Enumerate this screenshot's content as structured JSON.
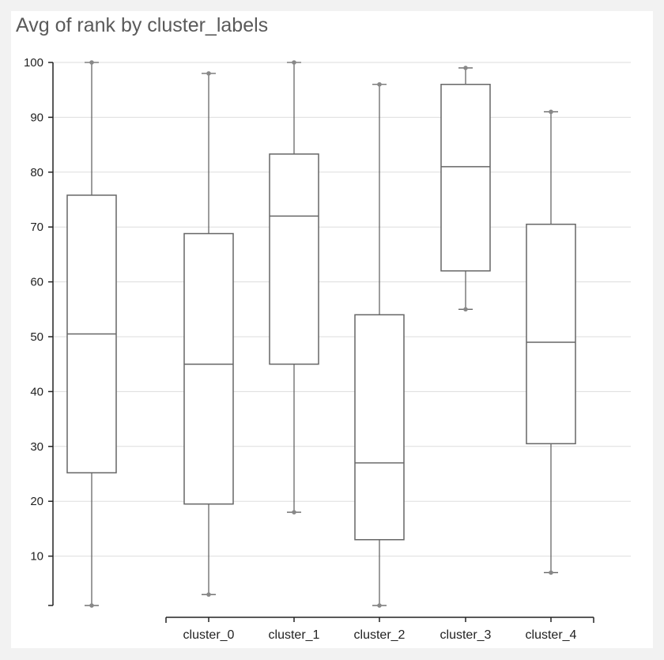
{
  "chart_data": {
    "type": "boxplot",
    "title": "Avg of rank by cluster_labels",
    "xlabel": "",
    "ylabel": "",
    "y_ticks": [
      "100",
      "90",
      "80",
      "70",
      "60",
      "50",
      "40",
      "30",
      "20",
      "10"
    ],
    "ylim": [
      0,
      100
    ],
    "grid": true,
    "categories": [
      "",
      "cluster_0",
      "cluster_1",
      "cluster_2",
      "cluster_3",
      "cluster_4"
    ],
    "boxes": [
      {
        "category": "",
        "min": 1,
        "q1": 25.2,
        "median": 50.5,
        "q3": 75.8,
        "max": 100
      },
      {
        "category": "cluster_0",
        "min": 3,
        "q1": 19.5,
        "median": 45,
        "q3": 68.8,
        "max": 98
      },
      {
        "category": "cluster_1",
        "min": 18,
        "q1": 45,
        "median": 72,
        "q3": 83.3,
        "max": 100
      },
      {
        "category": "cluster_2",
        "min": 1,
        "q1": 13,
        "median": 27,
        "q3": 54,
        "max": 96
      },
      {
        "category": "cluster_3",
        "min": 55,
        "q1": 62,
        "median": 81,
        "q3": 96,
        "max": 99
      },
      {
        "category": "cluster_4",
        "min": 7,
        "q1": 30.5,
        "median": 49,
        "q3": 70.5,
        "max": 91
      }
    ],
    "colors": {
      "box_stroke": "#666666",
      "grid": "#dddddd",
      "axis": "#222222",
      "whisker_dot": "#888888"
    }
  }
}
